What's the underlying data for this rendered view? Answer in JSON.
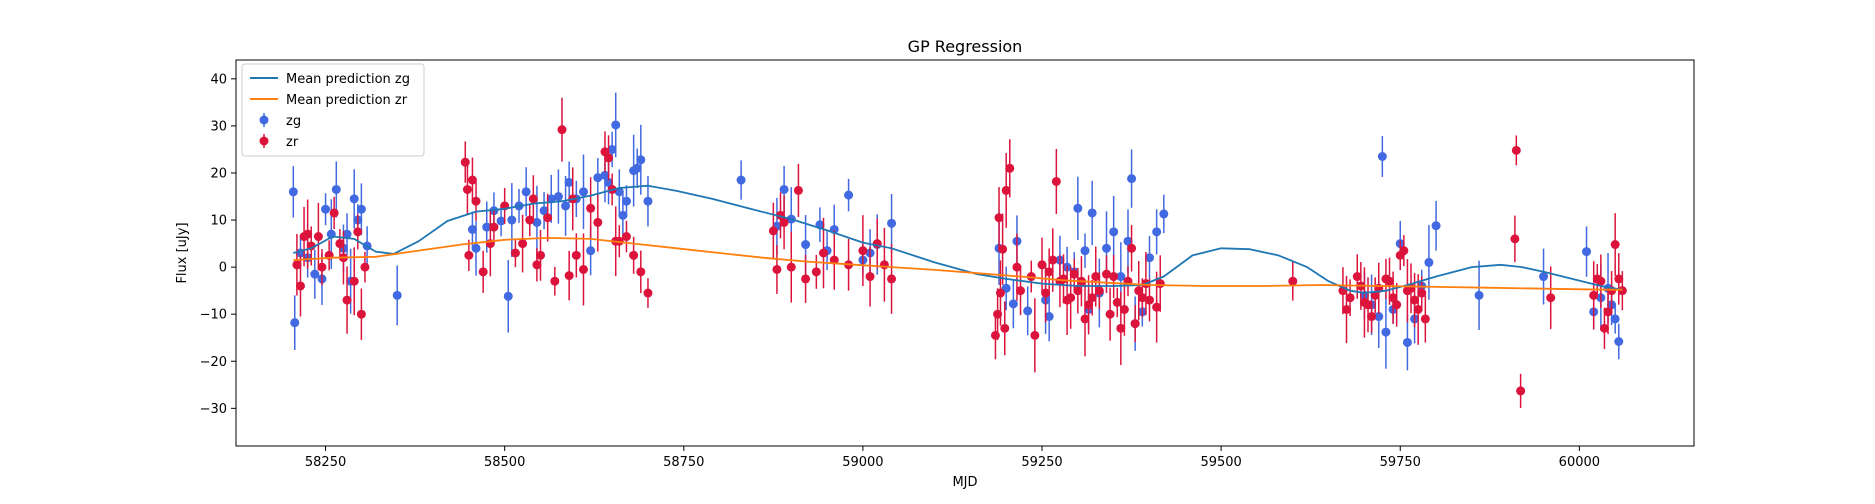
{
  "chart_data": {
    "type": "scatter",
    "title": "GP Regression",
    "xlabel": "MJD",
    "ylabel": "Flux [uJy]",
    "xlim": [
      58125,
      60160
    ],
    "ylim": [
      -38,
      44
    ],
    "xticks": [
      58250,
      58500,
      58750,
      59000,
      59250,
      59500,
      59750,
      60000
    ],
    "yticks": [
      -30,
      -20,
      -10,
      0,
      10,
      20,
      30,
      40
    ],
    "grid": false,
    "legend_position": "top-left",
    "colors": {
      "zg_points": "#4169e1",
      "zr_points": "#dc143c",
      "mean_zg": "#1f77b4",
      "mean_zr": "#ff7f0e"
    },
    "series": [
      {
        "name": "Mean prediction zg",
        "kind": "line",
        "color": "#1f77b4",
        "x": [
          58205,
          58230,
          58260,
          58290,
          58320,
          58345,
          58380,
          58420,
          58460,
          58500,
          58540,
          58580,
          58620,
          58660,
          58700,
          58740,
          58790,
          58840,
          58900,
          58950,
          59000,
          59040,
          59100,
          59160,
          59200,
          59250,
          59300,
          59350,
          59390,
          59420,
          59460,
          59500,
          59540,
          59580,
          59620,
          59650,
          59680,
          59700,
          59730,
          59760,
          59800,
          59850,
          59890,
          59920,
          59950,
          59990,
          60030,
          60060
        ],
        "y": [
          3.0,
          4.0,
          6.5,
          6.0,
          3.3,
          2.8,
          5.5,
          9.8,
          11.8,
          12.4,
          13.5,
          14.0,
          15.2,
          16.8,
          17.3,
          16.2,
          14.5,
          12.5,
          10.2,
          7.8,
          5.2,
          4.0,
          1.0,
          -1.5,
          -2.5,
          -3.5,
          -4.0,
          -4.0,
          -3.8,
          -2.0,
          2.5,
          4.0,
          3.8,
          2.5,
          0.0,
          -3.0,
          -5.0,
          -5.5,
          -5.0,
          -3.8,
          -2.0,
          0.0,
          0.5,
          0.0,
          -1.0,
          -2.5,
          -4.0,
          -4.8
        ]
      },
      {
        "name": "Mean prediction zr",
        "kind": "line",
        "color": "#ff7f0e",
        "x": [
          58205,
          58260,
          58320,
          58380,
          58440,
          58500,
          58560,
          58620,
          58680,
          58740,
          58800,
          58860,
          58920,
          58980,
          59040,
          59100,
          59160,
          59220,
          59280,
          59340,
          59400,
          59480,
          59560,
          59640,
          59720,
          59800,
          59880,
          59960,
          60040,
          60060
        ],
        "y": [
          1.5,
          2.0,
          2.2,
          3.5,
          4.8,
          5.8,
          6.2,
          6.0,
          5.0,
          4.0,
          3.0,
          2.0,
          1.2,
          0.6,
          0.0,
          -0.6,
          -1.3,
          -2.0,
          -2.8,
          -3.3,
          -3.8,
          -4.0,
          -4.0,
          -3.8,
          -4.0,
          -4.2,
          -4.4,
          -4.6,
          -4.8,
          -4.8
        ]
      },
      {
        "name": "zg",
        "kind": "errorbar",
        "color": "#4169e1",
        "x": [
          58205,
          58207,
          58215,
          58225,
          58235,
          58245,
          58250,
          58258,
          58265,
          58275,
          58280,
          58285,
          58290,
          58295,
          58300,
          58308,
          58350,
          58455,
          58460,
          58475,
          58485,
          58495,
          58505,
          58510,
          58520,
          58530,
          58545,
          58555,
          58565,
          58575,
          58585,
          58590,
          58600,
          58610,
          58620,
          58630,
          58640,
          58645,
          58650,
          58655,
          58660,
          58665,
          58670,
          58680,
          58685,
          58690,
          58700,
          58830,
          58880,
          58890,
          58900,
          58920,
          58940,
          58950,
          58960,
          58980,
          59000,
          59010,
          59020,
          59040,
          59190,
          59200,
          59210,
          59215,
          59230,
          59255,
          59260,
          59275,
          59285,
          59295,
          59300,
          59310,
          59315,
          59320,
          59330,
          59340,
          59350,
          59360,
          59370,
          59375,
          59380,
          59390,
          59400,
          59410,
          59420,
          59700,
          59710,
          59720,
          59725,
          59730,
          59740,
          59750,
          59760,
          59770,
          59780,
          59790,
          59800,
          59860,
          59950,
          60010,
          60020,
          60030,
          60040,
          60045,
          60050,
          60055
        ],
        "y": [
          16.0,
          -11.8,
          3.0,
          2.0,
          -1.5,
          -2.5,
          12.3,
          7.0,
          16.5,
          4.0,
          7.0,
          -3.0,
          14.5,
          10.0,
          12.3,
          4.5,
          -6.0,
          8.0,
          4.0,
          8.5,
          12.0,
          9.8,
          -6.2,
          10.0,
          13.0,
          16.0,
          9.5,
          12.0,
          14.5,
          15.0,
          13.0,
          18.0,
          14.5,
          16.0,
          3.5,
          19.0,
          19.5,
          18.0,
          25.0,
          30.2,
          16.0,
          11.0,
          14.0,
          20.5,
          21.0,
          22.8,
          14.0,
          18.5,
          8.7,
          16.5,
          10.2,
          4.8,
          9.0,
          3.5,
          8.0,
          15.3,
          1.5,
          3.0,
          4.8,
          9.3,
          4.0,
          -4.5,
          -7.8,
          5.5,
          -9.3,
          -7.0,
          -10.5,
          1.5,
          0.0,
          -1.0,
          12.5,
          3.5,
          -9.0,
          11.5,
          -5.5,
          4.0,
          7.5,
          -2.0,
          5.5,
          18.8,
          -12.0,
          -9.5,
          2.0,
          7.5,
          11.3,
          -6.0,
          -8.0,
          -10.5,
          23.5,
          -13.8,
          -9.0,
          5.0,
          -16.0,
          -11.0,
          -4.0,
          1.0,
          8.8,
          -6.0,
          -2.0,
          3.3,
          -9.5,
          -6.5,
          -4.5,
          -8.0,
          -11.0,
          -15.8
        ]
      },
      {
        "name": "zr",
        "kind": "errorbar",
        "color": "#dc143c",
        "x": [
          58210,
          58215,
          58220,
          58225,
          58230,
          58240,
          58245,
          58255,
          58262,
          58270,
          58275,
          58280,
          58290,
          58295,
          58300,
          58305,
          58445,
          58448,
          58450,
          58455,
          58460,
          58470,
          58480,
          58485,
          58500,
          58515,
          58525,
          58535,
          58540,
          58545,
          58550,
          58560,
          58570,
          58580,
          58590,
          58595,
          58600,
          58610,
          58620,
          58630,
          58640,
          58645,
          58650,
          58655,
          58660,
          58670,
          58680,
          58690,
          58700,
          58875,
          58880,
          58885,
          58890,
          58900,
          58910,
          58920,
          58935,
          58945,
          58960,
          58980,
          59000,
          59010,
          59020,
          59030,
          59040,
          59185,
          59188,
          59190,
          59192,
          59195,
          59198,
          59200,
          59205,
          59215,
          59220,
          59235,
          59240,
          59250,
          59255,
          59260,
          59265,
          59270,
          59275,
          59280,
          59285,
          59290,
          59295,
          59300,
          59305,
          59310,
          59315,
          59320,
          59325,
          59330,
          59340,
          59345,
          59350,
          59355,
          59360,
          59365,
          59370,
          59375,
          59380,
          59385,
          59390,
          59395,
          59400,
          59410,
          59415,
          59670,
          59675,
          59680,
          59690,
          59695,
          59700,
          59705,
          59710,
          59715,
          59720,
          59730,
          59735,
          59740,
          59745,
          59750,
          59755,
          59760,
          59765,
          59770,
          59775,
          59780,
          59785,
          59600,
          59910,
          59912,
          59918,
          59960,
          60020,
          60025,
          60030,
          60035,
          60040,
          60045,
          60050,
          60055,
          60060
        ],
        "y": [
          0.5,
          -4.0,
          6.5,
          7.0,
          4.5,
          6.5,
          0.0,
          2.5,
          11.5,
          5.0,
          2.0,
          -7.0,
          -3.0,
          7.5,
          -10.0,
          0.0,
          22.3,
          16.5,
          2.5,
          18.5,
          14.0,
          -1.0,
          5.0,
          8.5,
          13.0,
          3.0,
          5.0,
          10.0,
          14.5,
          0.5,
          2.5,
          10.5,
          -3.0,
          29.2,
          -1.8,
          14.5,
          2.5,
          -0.5,
          12.5,
          9.5,
          24.5,
          23.2,
          16.5,
          5.5,
          5.5,
          6.5,
          2.5,
          -1.0,
          -5.5,
          7.7,
          -0.5,
          11.0,
          9.5,
          0.0,
          16.3,
          -2.5,
          -1.0,
          3.0,
          1.5,
          0.5,
          3.5,
          -2.0,
          5.0,
          0.5,
          -2.5,
          -14.5,
          -10.0,
          10.5,
          -5.5,
          3.8,
          -13.0,
          16.3,
          21.0,
          0.0,
          -5.0,
          -2.0,
          -14.5,
          0.5,
          -5.5,
          -1.0,
          1.5,
          18.2,
          -3.0,
          -2.5,
          -7.0,
          -6.5,
          -1.5,
          -5.0,
          -3.0,
          -11.0,
          -8.0,
          -6.5,
          -2.0,
          -5.0,
          -1.5,
          -10.0,
          -2.0,
          -7.5,
          -13.0,
          -9.0,
          -3.0,
          4.0,
          -12.0,
          -5.0,
          -6.5,
          -3.5,
          -7.0,
          -8.5,
          -3.5,
          -5.0,
          -9.0,
          -6.5,
          -2.0,
          -4.0,
          -7.5,
          -8.0,
          -10.5,
          -6.0,
          -4.5,
          -2.5,
          -3.0,
          -6.5,
          -8.0,
          2.5,
          3.5,
          -5.0,
          -4.5,
          -7.0,
          -9.0,
          -5.5,
          -11.0,
          -3.0,
          6.0,
          24.8,
          -26.3,
          -6.5,
          -6.0,
          -2.5,
          -3.0,
          -13.0,
          -9.5,
          -5.0,
          4.8,
          -2.5,
          -5.0
        ]
      }
    ]
  }
}
